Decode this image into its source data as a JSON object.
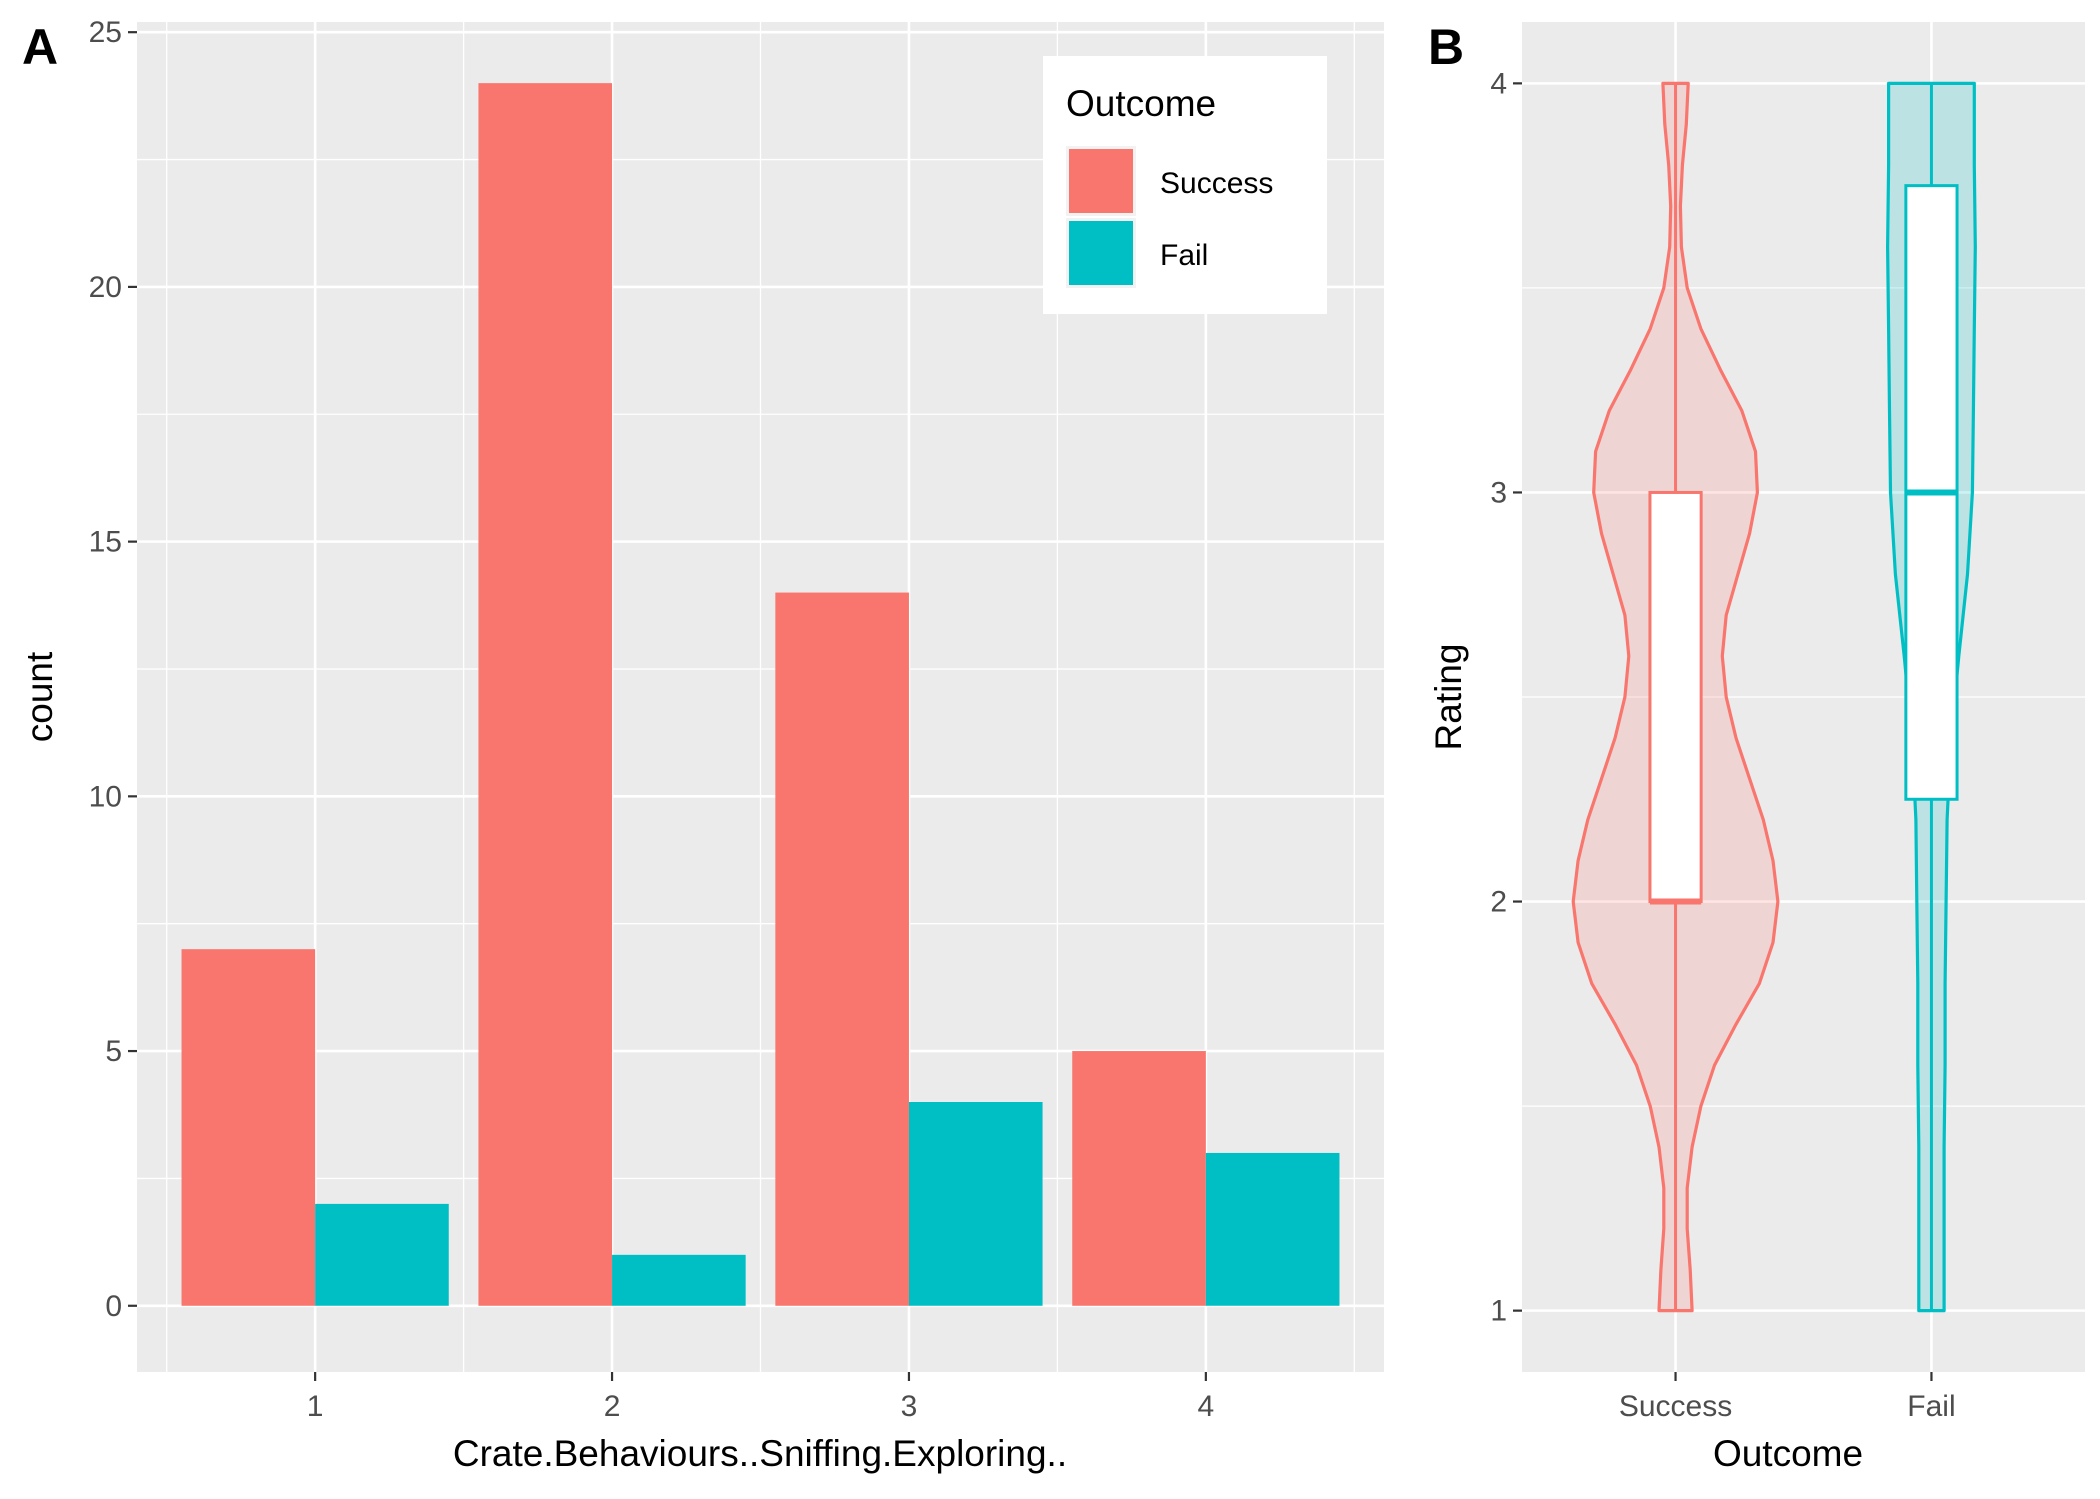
{
  "chart_data": [
    {
      "panel": "A",
      "type": "bar",
      "categories": [
        "1",
        "2",
        "3",
        "4"
      ],
      "series": [
        {
          "name": "Success",
          "values": [
            7,
            24,
            14,
            5
          ]
        },
        {
          "name": "Fail",
          "values": [
            2,
            1,
            4,
            3
          ]
        }
      ],
      "xlabel": "Crate.Behaviours..Sniffing.Exploring..",
      "ylabel": "count",
      "ylim": [
        -1.3,
        25.2
      ],
      "yticks": [
        0,
        5,
        10,
        15,
        20,
        25
      ],
      "legend": {
        "title": "Outcome",
        "position": "top-right",
        "entries": [
          "Success",
          "Fail"
        ]
      },
      "grid": true
    },
    {
      "panel": "B",
      "type": "violin+box",
      "categories": [
        "Success",
        "Fail"
      ],
      "xlabel": "Outcome",
      "ylabel": "Rating",
      "ylim": [
        0.85,
        4.15
      ],
      "yticks": [
        1,
        2,
        3,
        4
      ],
      "grid": true,
      "boxes": [
        {
          "name": "Success",
          "min": 1,
          "q1": 2,
          "median": 2,
          "q3": 3,
          "max": 4
        },
        {
          "name": "Fail",
          "min": 1,
          "q1": 2.25,
          "median": 3,
          "q3": 3.75,
          "max": 4
        }
      ],
      "violins": [
        {
          "name": "Success",
          "profile": [
            [
              1,
              0.17
            ],
            [
              1.1,
              0.15
            ],
            [
              1.2,
              0.12
            ],
            [
              1.3,
              0.12
            ],
            [
              1.4,
              0.17
            ],
            [
              1.5,
              0.26
            ],
            [
              1.6,
              0.4
            ],
            [
              1.7,
              0.62
            ],
            [
              1.8,
              0.86
            ],
            [
              1.9,
              1.0
            ],
            [
              2.0,
              1.05
            ],
            [
              2.1,
              1.0
            ],
            [
              2.2,
              0.9
            ],
            [
              2.3,
              0.76
            ],
            [
              2.4,
              0.62
            ],
            [
              2.5,
              0.52
            ],
            [
              2.6,
              0.48
            ],
            [
              2.7,
              0.52
            ],
            [
              2.8,
              0.64
            ],
            [
              2.9,
              0.76
            ],
            [
              3.0,
              0.84
            ],
            [
              3.1,
              0.82
            ],
            [
              3.2,
              0.68
            ],
            [
              3.3,
              0.46
            ],
            [
              3.4,
              0.26
            ],
            [
              3.5,
              0.12
            ],
            [
              3.6,
              0.06
            ],
            [
              3.7,
              0.05
            ],
            [
              3.8,
              0.07
            ],
            [
              3.9,
              0.11
            ],
            [
              4.0,
              0.13
            ]
          ]
        },
        {
          "name": "Fail",
          "profile": [
            [
              1,
              0.13
            ],
            [
              1.2,
              0.13
            ],
            [
              1.4,
              0.13
            ],
            [
              1.6,
              0.14
            ],
            [
              1.8,
              0.14
            ],
            [
              2.0,
              0.15
            ],
            [
              2.2,
              0.16
            ],
            [
              2.4,
              0.2
            ],
            [
              2.6,
              0.28
            ],
            [
              2.8,
              0.37
            ],
            [
              3.0,
              0.42
            ],
            [
              3.2,
              0.43
            ],
            [
              3.4,
              0.44
            ],
            [
              3.6,
              0.45
            ],
            [
              3.8,
              0.44
            ],
            [
              3.9,
              0.44
            ],
            [
              4.0,
              0.44
            ]
          ]
        }
      ]
    }
  ],
  "colors": {
    "success": "#F8766D",
    "fail": "#00BFC4",
    "panel_bg": "#EBEBEB",
    "grid": "#FFFFFF"
  }
}
